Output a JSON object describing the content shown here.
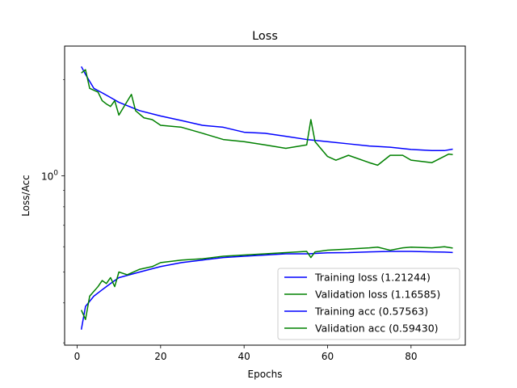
{
  "chart_data": {
    "type": "line",
    "title": "Loss",
    "xlabel": "Epochs",
    "ylabel": "Loss/Acc",
    "xlim": [
      -3,
      93
    ],
    "ylim": [
      0.295,
      2.55
    ],
    "yscale": "log",
    "xticks": [
      0,
      20,
      40,
      60,
      80
    ],
    "yticks": [
      {
        "value": 1.0,
        "label": "10",
        "sup": "0"
      }
    ],
    "grid": false,
    "legend_position": "lower-right",
    "series": [
      {
        "name": "Training loss (1.21244)",
        "color": "#0000ff",
        "keypoints": [
          [
            1,
            2.2
          ],
          [
            2,
            2.08
          ],
          [
            4,
            1.88
          ],
          [
            6,
            1.82
          ],
          [
            8,
            1.76
          ],
          [
            10,
            1.7
          ],
          [
            15,
            1.6
          ],
          [
            20,
            1.54
          ],
          [
            25,
            1.49
          ],
          [
            30,
            1.44
          ],
          [
            35,
            1.42
          ],
          [
            40,
            1.37
          ],
          [
            45,
            1.36
          ],
          [
            50,
            1.33
          ],
          [
            55,
            1.3
          ],
          [
            60,
            1.28
          ],
          [
            65,
            1.26
          ],
          [
            70,
            1.24
          ],
          [
            75,
            1.23
          ],
          [
            80,
            1.21
          ],
          [
            85,
            1.2
          ],
          [
            88,
            1.2
          ],
          [
            90,
            1.21244
          ]
        ]
      },
      {
        "name": "Validation loss (1.16585)",
        "color": "#008000",
        "keypoints": [
          [
            1,
            2.1
          ],
          [
            2,
            2.15
          ],
          [
            3,
            1.88
          ],
          [
            5,
            1.83
          ],
          [
            6,
            1.72
          ],
          [
            7,
            1.68
          ],
          [
            8,
            1.65
          ],
          [
            9,
            1.72
          ],
          [
            10,
            1.55
          ],
          [
            13,
            1.8
          ],
          [
            14,
            1.6
          ],
          [
            16,
            1.52
          ],
          [
            18,
            1.5
          ],
          [
            20,
            1.44
          ],
          [
            25,
            1.42
          ],
          [
            30,
            1.36
          ],
          [
            35,
            1.3
          ],
          [
            40,
            1.28
          ],
          [
            45,
            1.25
          ],
          [
            50,
            1.22
          ],
          [
            55,
            1.25
          ],
          [
            56,
            1.5
          ],
          [
            57,
            1.28
          ],
          [
            60,
            1.15
          ],
          [
            62,
            1.12
          ],
          [
            65,
            1.16
          ],
          [
            70,
            1.1
          ],
          [
            72,
            1.08
          ],
          [
            75,
            1.16
          ],
          [
            78,
            1.16
          ],
          [
            80,
            1.12
          ],
          [
            85,
            1.1
          ],
          [
            89,
            1.17
          ],
          [
            90,
            1.16585
          ]
        ]
      },
      {
        "name": "Training acc (0.57563)",
        "color": "#0000ff",
        "keypoints": [
          [
            1,
            0.33
          ],
          [
            2,
            0.39
          ],
          [
            4,
            0.42
          ],
          [
            6,
            0.44
          ],
          [
            8,
            0.46
          ],
          [
            10,
            0.48
          ],
          [
            15,
            0.5
          ],
          [
            20,
            0.52
          ],
          [
            25,
            0.535
          ],
          [
            30,
            0.545
          ],
          [
            35,
            0.555
          ],
          [
            40,
            0.56
          ],
          [
            45,
            0.565
          ],
          [
            50,
            0.57
          ],
          [
            55,
            0.57
          ],
          [
            60,
            0.574
          ],
          [
            65,
            0.575
          ],
          [
            70,
            0.578
          ],
          [
            75,
            0.58
          ],
          [
            80,
            0.58
          ],
          [
            85,
            0.578
          ],
          [
            88,
            0.577
          ],
          [
            90,
            0.57563
          ]
        ]
      },
      {
        "name": "Validation acc (0.59430)",
        "color": "#008000",
        "keypoints": [
          [
            1,
            0.38
          ],
          [
            2,
            0.355
          ],
          [
            3,
            0.42
          ],
          [
            5,
            0.45
          ],
          [
            6,
            0.47
          ],
          [
            7,
            0.46
          ],
          [
            8,
            0.48
          ],
          [
            9,
            0.45
          ],
          [
            10,
            0.5
          ],
          [
            12,
            0.49
          ],
          [
            15,
            0.51
          ],
          [
            18,
            0.52
          ],
          [
            20,
            0.535
          ],
          [
            25,
            0.545
          ],
          [
            30,
            0.55
          ],
          [
            35,
            0.56
          ],
          [
            40,
            0.565
          ],
          [
            45,
            0.57
          ],
          [
            50,
            0.575
          ],
          [
            55,
            0.58
          ],
          [
            56,
            0.555
          ],
          [
            57,
            0.578
          ],
          [
            60,
            0.585
          ],
          [
            65,
            0.59
          ],
          [
            70,
            0.595
          ],
          [
            72,
            0.598
          ],
          [
            75,
            0.585
          ],
          [
            78,
            0.595
          ],
          [
            80,
            0.598
          ],
          [
            85,
            0.595
          ],
          [
            88,
            0.6
          ],
          [
            90,
            0.5943
          ]
        ]
      }
    ]
  }
}
